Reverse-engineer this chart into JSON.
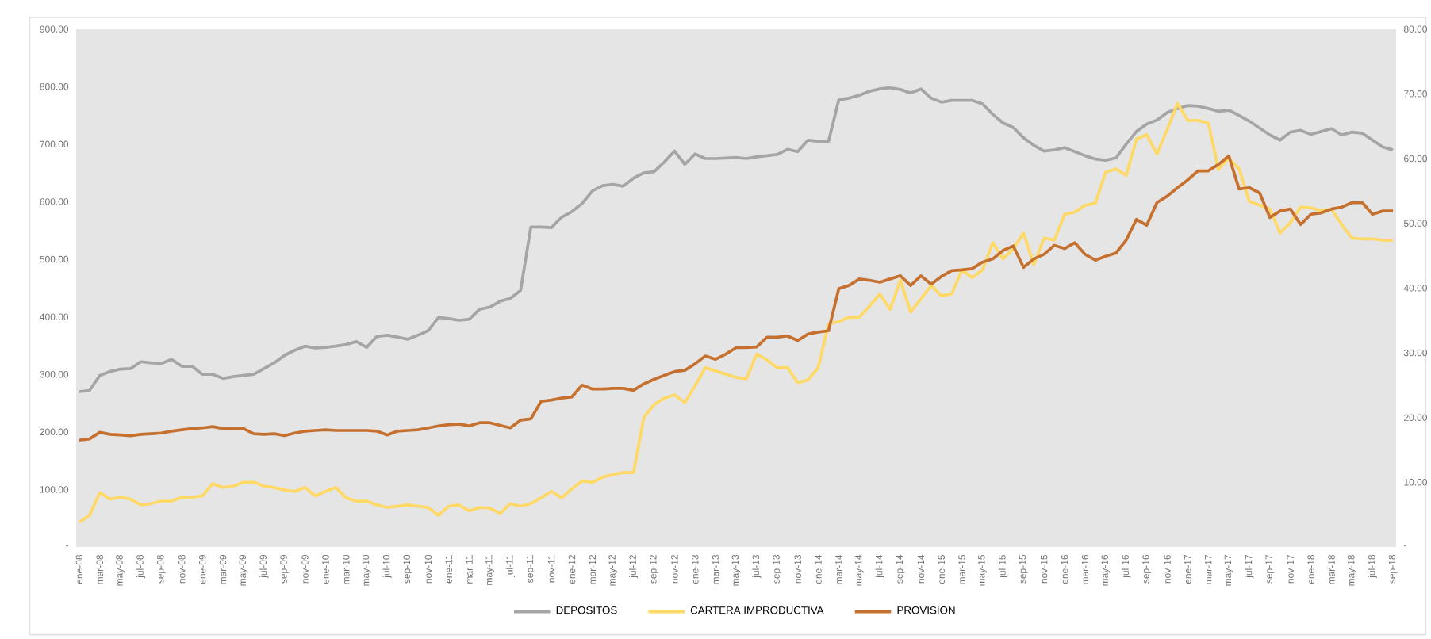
{
  "chart_data": {
    "type": "line",
    "categories": [
      "ene-08",
      null,
      "mar-08",
      null,
      "may-08",
      null,
      "jul-08",
      null,
      "sep-08",
      null,
      "nov-08",
      null,
      "ene-09",
      null,
      "mar-09",
      null,
      "may-09",
      null,
      "jul-09",
      null,
      "sep-09",
      null,
      "nov-09",
      null,
      "ene-10",
      null,
      "mar-10",
      null,
      "may-10",
      null,
      "jul-10",
      null,
      "sep-10",
      null,
      "nov-10",
      null,
      "ene-11",
      null,
      "mar-11",
      null,
      "may-11",
      null,
      "jul-11",
      null,
      "sep-11",
      null,
      "nov-11",
      null,
      "ene-12",
      null,
      "mar-12",
      null,
      "may-12",
      null,
      "jul-12",
      null,
      "sep-12",
      null,
      "nov-12",
      null,
      "ene-13",
      null,
      "mar-13",
      null,
      "may-13",
      null,
      "jul-13",
      null,
      "sep-13",
      null,
      "nov-13",
      null,
      "ene-14",
      null,
      "mar-14",
      null,
      "may-14",
      null,
      "jul-14",
      null,
      "sep-14",
      null,
      "nov-14",
      null,
      "ene-15",
      null,
      "mar-15",
      null,
      "may-15",
      null,
      "jul-15",
      null,
      "sep-15",
      null,
      "nov-15",
      null,
      "ene-16",
      null,
      "mar-16",
      null,
      "may-16",
      null,
      "jul-16",
      null,
      "sep-16",
      null,
      "nov-16",
      null,
      "ene-17",
      null,
      "mar-17",
      null,
      "may-17",
      null,
      "jul-17",
      null,
      "sep-17",
      null,
      "nov-17",
      null,
      "ene-18",
      null,
      "mar-18",
      null,
      "may-18",
      null,
      "jul-18",
      null,
      "sep-18"
    ],
    "series": [
      {
        "name": "DEPOSITOS",
        "color": "#a5a5a5",
        "values": [
          270,
          272,
          298,
          305,
          309,
          310,
          322,
          320,
          319,
          326,
          314,
          314,
          300,
          300,
          293,
          296,
          298,
          300,
          310,
          320,
          333,
          342,
          349,
          346,
          347,
          349,
          352,
          357,
          347,
          366,
          368,
          365,
          361,
          368,
          376,
          399,
          397,
          394,
          396,
          413,
          417,
          427,
          432,
          446,
          556,
          556,
          555,
          573,
          583,
          597,
          619,
          628,
          630,
          627,
          641,
          650,
          652,
          669,
          688,
          665,
          683,
          675,
          675,
          676,
          677,
          675,
          678,
          680,
          682,
          691,
          687,
          707,
          705,
          705,
          777,
          780,
          785,
          792,
          796,
          798,
          795,
          789,
          796,
          780,
          773,
          776,
          776,
          776,
          770,
          752,
          737,
          729,
          711,
          698,
          688,
          690,
          694,
          687,
          680,
          674,
          672,
          676,
          700,
          722,
          735,
          742,
          755,
          762,
          767,
          766,
          762,
          757,
          759,
          750,
          740,
          728,
          716,
          707,
          721,
          724,
          717,
          722,
          727,
          716,
          721,
          719,
          707,
          695,
          690
        ]
      },
      {
        "name": "CARTERA IMPRODUCTIVA",
        "color": "#ffd966",
        "axis": "y2",
        "values": [
          3.8,
          4.9,
          8.4,
          7.4,
          7.7,
          7.4,
          6.5,
          6.7,
          7.1,
          7.1,
          7.7,
          7.7,
          7.9,
          9.8,
          9.2,
          9.4,
          10.0,
          10.0,
          9.4,
          9.2,
          8.8,
          8.6,
          9.2,
          7.9,
          8.6,
          9.2,
          7.6,
          7.1,
          7.1,
          6.5,
          6.1,
          6.3,
          6.5,
          6.3,
          6.1,
          4.9,
          6.3,
          6.5,
          5.6,
          6.1,
          6.0,
          5.2,
          6.7,
          6.3,
          6.7,
          7.6,
          8.6,
          7.6,
          9.0,
          10.2,
          10.0,
          10.8,
          11.2,
          11.5,
          11.5,
          20.0,
          22.0,
          23.0,
          23.5,
          22.3,
          24.9,
          27.7,
          27.2,
          26.7,
          26.2,
          26.0,
          29.8,
          28.9,
          27.7,
          27.7,
          25.4,
          25.8,
          27.7,
          34.5,
          34.8,
          35.5,
          35.5,
          37.2,
          39.1,
          36.7,
          41.2,
          36.3,
          38.3,
          40.4,
          38.8,
          39.1,
          42.8,
          41.6,
          42.8,
          47.0,
          44.5,
          46.1,
          48.5,
          43.6,
          47.7,
          47.4,
          51.4,
          51.7,
          52.8,
          53.1,
          57.9,
          58.4,
          57.4,
          63.0,
          63.7,
          60.7,
          64.5,
          68.5,
          65.9,
          65.9,
          65.5,
          58.3,
          60.1,
          58.4,
          53.4,
          52.8,
          52.2,
          48.5,
          50.1,
          52.5,
          52.4,
          51.9,
          52.2,
          49.8,
          47.7,
          47.6,
          47.6,
          47.4,
          47.4
        ]
      },
      {
        "name": "PROVISION",
        "color": "#c5702f",
        "axis": "y2",
        "values": [
          16.5,
          16.7,
          17.7,
          17.4,
          17.3,
          17.2,
          17.4,
          17.5,
          17.6,
          17.9,
          18.1,
          18.3,
          18.4,
          18.6,
          18.3,
          18.3,
          18.3,
          17.5,
          17.4,
          17.5,
          17.2,
          17.6,
          17.9,
          18.0,
          18.1,
          18.0,
          18.0,
          18.0,
          18.0,
          17.9,
          17.3,
          17.9,
          18.0,
          18.1,
          18.4,
          18.7,
          18.9,
          19.0,
          18.7,
          19.2,
          19.2,
          18.8,
          18.4,
          19.6,
          19.8,
          22.5,
          22.7,
          23.0,
          23.2,
          25.0,
          24.4,
          24.4,
          24.5,
          24.5,
          24.2,
          25.2,
          25.9,
          26.5,
          27.1,
          27.3,
          28.3,
          29.5,
          29.0,
          29.8,
          30.8,
          30.8,
          30.9,
          32.4,
          32.4,
          32.6,
          31.9,
          32.9,
          33.2,
          33.4,
          39.9,
          40.4,
          41.4,
          41.2,
          40.9,
          41.4,
          41.9,
          40.4,
          41.9,
          40.6,
          41.8,
          42.7,
          42.8,
          43.0,
          44.0,
          44.5,
          45.8,
          46.5,
          43.2,
          44.5,
          45.2,
          46.6,
          46.1,
          47.0,
          45.2,
          44.3,
          44.9,
          45.4,
          47.4,
          50.6,
          49.7,
          53.2,
          54.2,
          55.5,
          56.7,
          58.1,
          58.1,
          59.1,
          60.4,
          55.3,
          55.5,
          54.7,
          50.9,
          51.9,
          52.2,
          49.8,
          51.4,
          51.6,
          52.2,
          52.5,
          53.2,
          53.2,
          51.4,
          51.9,
          51.9
        ]
      }
    ],
    "ylim": [
      0,
      900
    ],
    "yticks": [
      {
        "value": 0,
        "label": "-"
      },
      {
        "value": 100,
        "label": "100.00"
      },
      {
        "value": 200,
        "label": "200.00"
      },
      {
        "value": 300,
        "label": "300.00"
      },
      {
        "value": 400,
        "label": "400.00"
      },
      {
        "value": 500,
        "label": "500.00"
      },
      {
        "value": 600,
        "label": "600.00"
      },
      {
        "value": 700,
        "label": "700.00"
      },
      {
        "value": 800,
        "label": "800.00"
      },
      {
        "value": 900,
        "label": "900.00"
      }
    ],
    "y2lim": [
      0,
      80
    ],
    "y2ticks": [
      {
        "value": 0,
        "label": "-"
      },
      {
        "value": 10,
        "label": "10.00"
      },
      {
        "value": 20,
        "label": "20.00"
      },
      {
        "value": 30,
        "label": "30.00"
      },
      {
        "value": 40,
        "label": "40.00"
      },
      {
        "value": 50,
        "label": "50.00"
      },
      {
        "value": 60,
        "label": "60.00"
      },
      {
        "value": 70,
        "label": "70.00"
      },
      {
        "value": 80,
        "label": "80.00"
      }
    ],
    "grid": false,
    "legend": "bottom",
    "marker": "none",
    "line_style": "solid"
  }
}
